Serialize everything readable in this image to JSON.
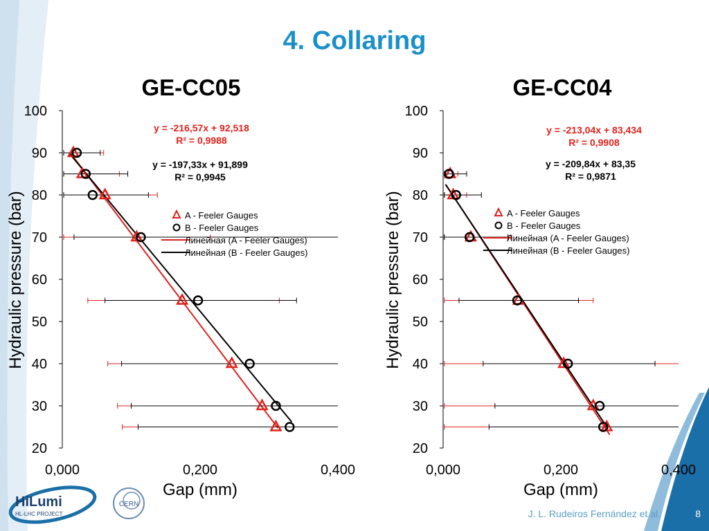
{
  "slide": {
    "title": "4. Collaring",
    "author": "J. L. Rudeiros Fernández et al.",
    "page_number": "8",
    "logo_hilumi_text": "HiLumi",
    "logo_hilumi_sub": "HL-LHC PROJECT",
    "logo_cern_text": "CERN"
  },
  "colors": {
    "title": "#1a8fc9",
    "series_a": "#e0201b",
    "series_b": "#000000",
    "accent": "#1b6fa8"
  },
  "chart_data": [
    {
      "type": "scatter",
      "title": "GE-CC05",
      "xlabel": "Gap (mm)",
      "ylabel": "Hydraulic pressure (bar)",
      "xlim": [
        0,
        0.4
      ],
      "ylim": [
        20,
        100
      ],
      "x_ticks": [
        "0,000",
        "0,200",
        "0,400"
      ],
      "y_ticks": [
        "20",
        "30",
        "40",
        "50",
        "60",
        "70",
        "80",
        "90",
        "100"
      ],
      "legend": [
        "A - Feeler Gauges",
        "B - Feeler Gauges",
        "Линейная (A - Feeler Gauges)",
        "Линейная (B - Feeler Gauges)"
      ],
      "equations": [
        {
          "series": "A",
          "eq": "y = -216,57x + 92,518",
          "r2": "R² = 0,9988"
        },
        {
          "series": "B",
          "eq": "y = -197,33x + 91,899",
          "r2": "R² = 0,9945"
        }
      ],
      "series": [
        {
          "name": "A - Feeler Gauges",
          "points": [
            {
              "x": 0.016,
              "y": 90,
              "xerr": [
                0.002,
                0.06
              ]
            },
            {
              "x": 0.029,
              "y": 85,
              "xerr": [
                0.002,
                0.083
              ]
            },
            {
              "x": 0.062,
              "y": 80,
              "xerr": [
                0.002,
                0.138
              ]
            },
            {
              "x": 0.108,
              "y": 70,
              "xerr": [
                0.002,
                0.215
              ]
            },
            {
              "x": 0.174,
              "y": 55,
              "xerr": [
                0.037,
                0.315
              ]
            },
            {
              "x": 0.246,
              "y": 40,
              "xerr": [
                0.066,
                0.4
              ]
            },
            {
              "x": 0.29,
              "y": 30,
              "xerr": [
                0.08,
                0.4
              ]
            },
            {
              "x": 0.31,
              "y": 25,
              "xerr": [
                0.087,
                0.4
              ]
            }
          ]
        },
        {
          "name": "B - Feeler Gauges",
          "points": [
            {
              "x": 0.021,
              "y": 90,
              "xerr": [
                0.002,
                0.055
              ]
            },
            {
              "x": 0.034,
              "y": 85,
              "xerr": [
                0.002,
                0.095
              ]
            },
            {
              "x": 0.044,
              "y": 80,
              "xerr": [
                0.002,
                0.125
              ]
            },
            {
              "x": 0.114,
              "y": 70,
              "xerr": [
                0.017,
                0.4
              ]
            },
            {
              "x": 0.197,
              "y": 55,
              "xerr": [
                0.062,
                0.34
              ]
            },
            {
              "x": 0.272,
              "y": 40,
              "xerr": [
                0.086,
                0.4
              ]
            },
            {
              "x": 0.31,
              "y": 30,
              "xerr": [
                0.1,
                0.4
              ]
            },
            {
              "x": 0.33,
              "y": 25,
              "xerr": [
                0.11,
                0.4
              ]
            }
          ]
        }
      ],
      "fits": [
        {
          "name": "Линейная (A - Feeler Gauges)",
          "x": [
            0.012,
            0.313
          ]
        },
        {
          "name": "Линейная (B - Feeler Gauges)",
          "x": [
            0.01,
            0.333
          ]
        }
      ]
    },
    {
      "type": "scatter",
      "title": "GE-CC04",
      "xlabel": "Gap (mm)",
      "ylabel": "Hydraulic pressure (bar)",
      "xlim": [
        0,
        0.4
      ],
      "ylim": [
        20,
        100
      ],
      "x_ticks": [
        "0,000",
        "0,200",
        "0,400"
      ],
      "y_ticks": [
        "20",
        "30",
        "40",
        "50",
        "60",
        "70",
        "80",
        "90",
        "100"
      ],
      "legend": [
        "A - Feeler Gauges",
        "B - Feeler Gauges",
        "Линейная (A - Feeler Gauges)",
        "Линейная (B - Feeler Gauges)"
      ],
      "equations": [
        {
          "series": "A",
          "eq": "y = -213,04x + 83,434",
          "r2": "R² = 0,9908"
        },
        {
          "series": "B",
          "eq": "y = -209,84x + 83,35",
          "r2": "R² = 0,9871"
        }
      ],
      "series": [
        {
          "name": "A - Feeler Gauges",
          "points": [
            {
              "x": 0.012,
              "y": 85,
              "xerr": [
                0.002,
                0.025
              ]
            },
            {
              "x": 0.017,
              "y": 80,
              "xerr": [
                0.002,
                0.04
              ]
            },
            {
              "x": 0.047,
              "y": 70,
              "xerr": [
                0.002,
                0.115
              ]
            },
            {
              "x": 0.128,
              "y": 55,
              "xerr": [
                0.002,
                0.255
              ]
            },
            {
              "x": 0.205,
              "y": 40,
              "xerr": [
                0.002,
                0.4
              ]
            },
            {
              "x": 0.255,
              "y": 30,
              "xerr": [
                0.002,
                0.4
              ]
            },
            {
              "x": 0.278,
              "y": 25,
              "xerr": [
                0.002,
                0.4
              ]
            }
          ]
        },
        {
          "name": "B - Feeler Gauges",
          "points": [
            {
              "x": 0.01,
              "y": 85,
              "xerr": [
                0.002,
                0.04
              ]
            },
            {
              "x": 0.022,
              "y": 80,
              "xerr": [
                0.002,
                0.065
              ]
            },
            {
              "x": 0.045,
              "y": 70,
              "xerr": [
                0.002,
                0.11
              ]
            },
            {
              "x": 0.126,
              "y": 55,
              "xerr": [
                0.027,
                0.23
              ]
            },
            {
              "x": 0.212,
              "y": 40,
              "xerr": [
                0.068,
                0.36
              ]
            },
            {
              "x": 0.266,
              "y": 30,
              "xerr": [
                0.088,
                0.4
              ]
            },
            {
              "x": 0.272,
              "y": 25,
              "xerr": [
                0.078,
                0.4
              ]
            }
          ]
        }
      ],
      "fits": [
        {
          "name": "Линейная (A - Feeler Gauges)",
          "x": [
            0.005,
            0.283
          ]
        },
        {
          "name": "Линейная (B - Feeler Gauges)",
          "x": [
            0.004,
            0.28
          ]
        }
      ]
    }
  ]
}
